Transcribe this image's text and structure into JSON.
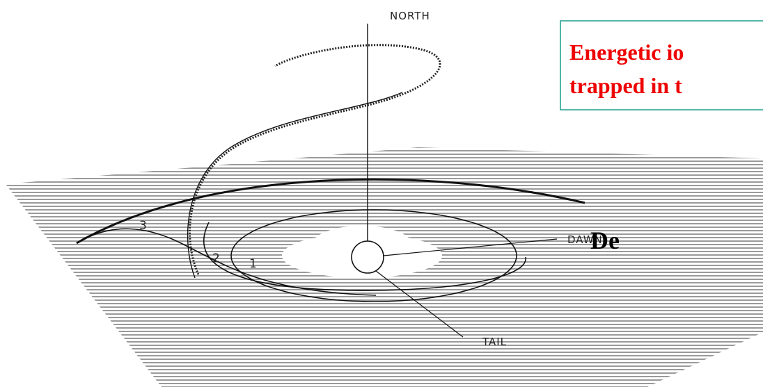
{
  "diagram": {
    "labels": {
      "north": "NORTH",
      "dawn": "DAWN",
      "tail": "TAIL",
      "region_1": "1",
      "region_2": "2",
      "region_3": "3"
    }
  },
  "callout": {
    "lines": [
      "Energetic io",
      "trapped in t"
    ]
  },
  "heading": "De"
}
